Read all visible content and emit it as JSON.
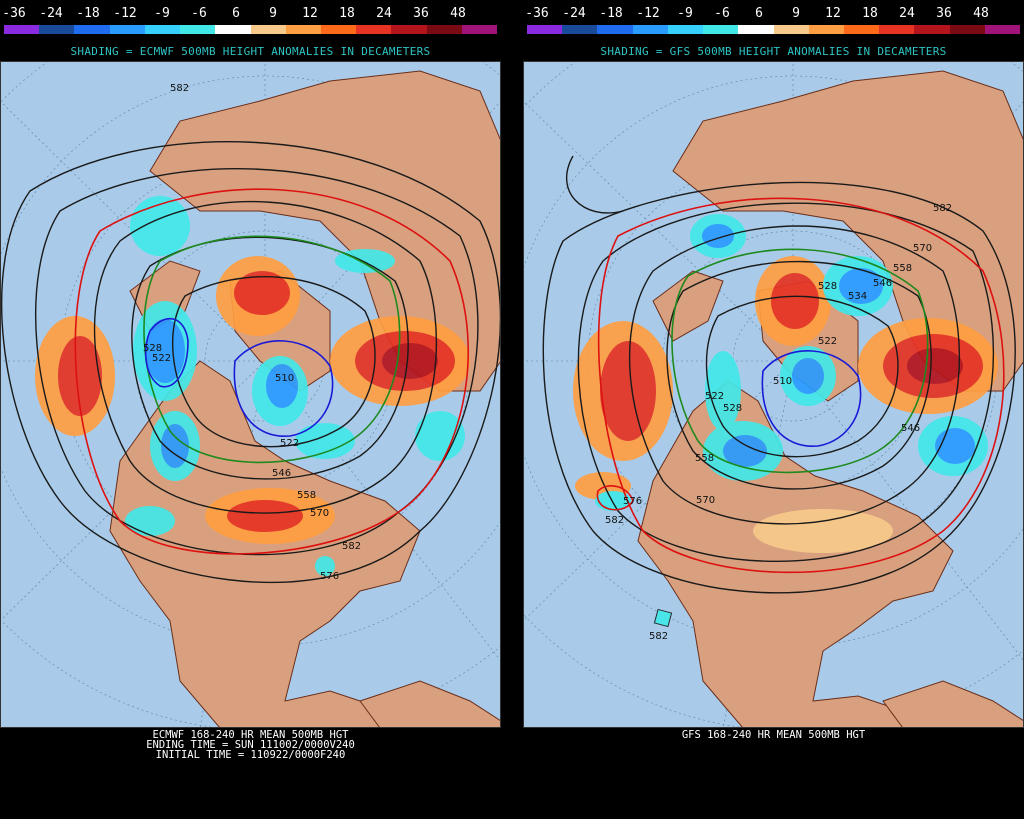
{
  "scale": {
    "labels": [
      "-36",
      "-24",
      "-18",
      "-12",
      "-9",
      "-6",
      "6",
      "9",
      "12",
      "18",
      "24",
      "36",
      "48"
    ],
    "colors": [
      "#8a2be2",
      "#1a4a9a",
      "#1f6cf0",
      "#2a9bff",
      "#35d0ff",
      "#42e8e8",
      "#ffffff",
      "#f7c98a",
      "#ff9e42",
      "#ff6a1a",
      "#e63323",
      "#b4141c",
      "#7a0a14",
      "#a0147a"
    ]
  },
  "left_panel": {
    "shading_title": "SHADING = ECMWF 500MB HEIGHT ANOMALIES IN DECAMETERS",
    "contour_labels": [
      "582",
      "528",
      "522",
      "510",
      "522",
      "546",
      "558",
      "570",
      "582",
      "576"
    ],
    "footer": [
      "ECMWF 168-240 HR MEAN 500MB HGT",
      "ENDING TIME = SUN 111002/0000V240",
      "INITIAL TIME = 110922/0000F240"
    ]
  },
  "right_panel": {
    "shading_title": "SHADING = GFS 500MB HEIGHT ANOMALIES IN DECAMETERS",
    "contour_labels": [
      "582",
      "570",
      "558",
      "546",
      "528",
      "534",
      "522",
      "510",
      "522",
      "528",
      "558",
      "546",
      "570",
      "576",
      "582",
      "582"
    ],
    "footer": [
      "GFS 168-240 HR MEAN 500MB HGT"
    ]
  },
  "colors": {
    "ocean": "#a9cbe9",
    "land": "#d8a07e",
    "border": "#6b2e1a",
    "contour": "#1a1a1a",
    "contour_red": "#dd1111",
    "contour_green": "#1e8a1e",
    "contour_blue": "#1a1ad6"
  }
}
